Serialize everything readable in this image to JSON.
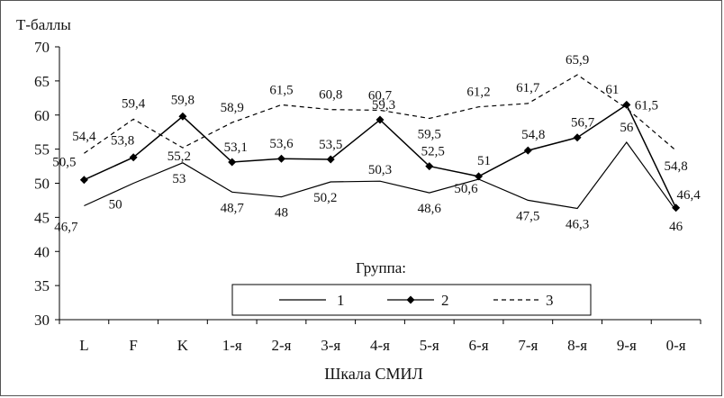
{
  "chart_data": {
    "type": "line",
    "ylabel": "Т-баллы",
    "xlabel": "Шкала СМИЛ",
    "ylim": [
      30,
      70
    ],
    "yticks": [
      "30",
      "35",
      "40",
      "45",
      "50",
      "55",
      "60",
      "65",
      "70"
    ],
    "categories": [
      "L",
      "F",
      "K",
      "1-я",
      "2-я",
      "3-я",
      "4-я",
      "5-я",
      "6-я",
      "7-я",
      "8-я",
      "9-я",
      "0-я"
    ],
    "legend": {
      "title": "Группа:",
      "placement": "bottom-inside"
    },
    "series": [
      {
        "name": "1",
        "style": "solid",
        "color": "#000000",
        "values": [
          46.7,
          50,
          53,
          48.7,
          48,
          50.2,
          50.3,
          48.6,
          50.6,
          47.5,
          46.3,
          56,
          46
        ],
        "labels": [
          "46,7",
          "50",
          "53",
          "48,7",
          "48",
          "50,2",
          "50,3",
          "48,6",
          "50,6",
          "47,5",
          "46,3",
          "56",
          "46"
        ]
      },
      {
        "name": "2",
        "style": "solid-diamond",
        "color": "#000000",
        "values": [
          50.5,
          53.8,
          59.8,
          53.1,
          53.6,
          53.5,
          59.3,
          52.5,
          51,
          54.8,
          56.7,
          61.5,
          46.4
        ],
        "labels": [
          "50,5",
          "53,8",
          "59,8",
          "53,1",
          "53,6",
          "53,5",
          "59,3",
          "52,5",
          "51",
          "54,8",
          "56,7",
          "61,5",
          "46,4"
        ]
      },
      {
        "name": "3",
        "style": "dashed",
        "color": "#000000",
        "values": [
          54.4,
          59.4,
          55.2,
          58.9,
          61.5,
          60.8,
          60.7,
          59.5,
          61.2,
          61.7,
          65.9,
          61,
          54.8
        ],
        "labels": [
          "54,4",
          "59,4",
          "55,2",
          "58,9",
          "61,5",
          "60,8",
          "60,7",
          "59,5",
          "61,2",
          "61,7",
          "65,9",
          "61",
          "54,8"
        ]
      }
    ]
  }
}
